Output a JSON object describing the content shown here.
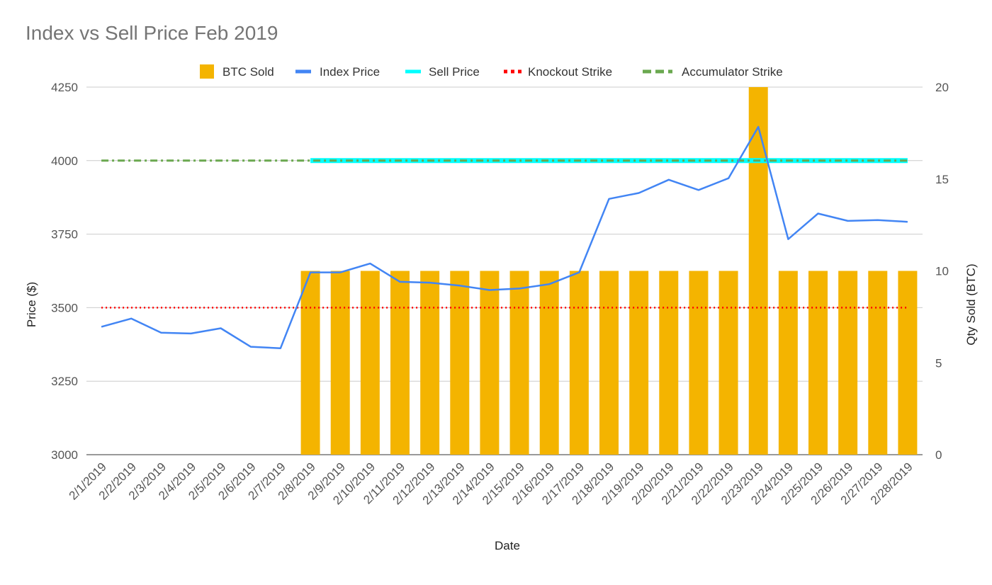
{
  "chart_data": {
    "type": "bar",
    "title": "Index vs Sell Price Feb 2019",
    "xlabel": "Date",
    "ylabel_left": "Price ($)",
    "ylabel_right": "Qty Sold (BTC)",
    "ylim_left": [
      3000,
      4250
    ],
    "yticks_left": [
      3000,
      3250,
      3500,
      3750,
      4000,
      4250
    ],
    "ylim_right": [
      0,
      20
    ],
    "yticks_right": [
      0,
      5,
      10,
      15,
      20
    ],
    "grid": true,
    "legend_position": "top",
    "categories": [
      "2/1/2019",
      "2/2/2019",
      "2/3/2019",
      "2/4/2019",
      "2/5/2019",
      "2/6/2019",
      "2/7/2019",
      "2/8/2019",
      "2/9/2019",
      "2/10/2019",
      "2/11/2019",
      "2/12/2019",
      "2/13/2019",
      "2/14/2019",
      "2/15/2019",
      "2/16/2019",
      "2/17/2019",
      "2/18/2019",
      "2/19/2019",
      "2/20/2019",
      "2/21/2019",
      "2/22/2019",
      "2/23/2019",
      "2/24/2019",
      "2/25/2019",
      "2/26/2019",
      "2/27/2019",
      "2/28/2019"
    ],
    "series": [
      {
        "name": "BTC Sold",
        "type": "bar",
        "axis": "right",
        "color": "#F4B400",
        "values": [
          0,
          0,
          0,
          0,
          0,
          0,
          0,
          10,
          10,
          10,
          10,
          10,
          10,
          10,
          10,
          10,
          10,
          10,
          10,
          10,
          10,
          10,
          20,
          10,
          10,
          10,
          10,
          10
        ]
      },
      {
        "name": "Index Price",
        "type": "line",
        "axis": "left",
        "color": "#4285F4",
        "style": "solid",
        "values": [
          3435,
          3463,
          3415,
          3412,
          3430,
          3367,
          3362,
          3620,
          3620,
          3650,
          3588,
          3585,
          3575,
          3560,
          3565,
          3580,
          3620,
          3870,
          3890,
          3935,
          3900,
          3940,
          4115,
          3733,
          3820,
          3795,
          3798,
          3792
        ]
      },
      {
        "name": "Sell Price",
        "type": "line",
        "axis": "left",
        "color": "#00FFFF",
        "style": "solid",
        "values": [
          null,
          null,
          null,
          null,
          null,
          null,
          null,
          4000,
          4000,
          4000,
          4000,
          4000,
          4000,
          4000,
          4000,
          4000,
          4000,
          4000,
          4000,
          4000,
          4000,
          4000,
          4000,
          4000,
          4000,
          4000,
          4000,
          4000
        ]
      },
      {
        "name": "Knockout Strike",
        "type": "line",
        "axis": "left",
        "color": "#FF0000",
        "style": "dotted",
        "values": [
          3500,
          3500,
          3500,
          3500,
          3500,
          3500,
          3500,
          3500,
          3500,
          3500,
          3500,
          3500,
          3500,
          3500,
          3500,
          3500,
          3500,
          3500,
          3500,
          3500,
          3500,
          3500,
          3500,
          3500,
          3500,
          3500,
          3500,
          3500
        ]
      },
      {
        "name": "Accumulator Strike",
        "type": "line",
        "axis": "left",
        "color": "#6AA84F",
        "style": "dashdot",
        "values": [
          4000,
          4000,
          4000,
          4000,
          4000,
          4000,
          4000,
          4000,
          4000,
          4000,
          4000,
          4000,
          4000,
          4000,
          4000,
          4000,
          4000,
          4000,
          4000,
          4000,
          4000,
          4000,
          4000,
          4000,
          4000,
          4000,
          4000,
          4000
        ]
      }
    ]
  }
}
